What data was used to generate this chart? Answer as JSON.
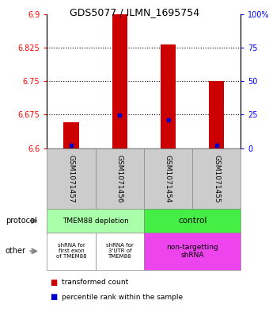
{
  "title": "GDS5077 / ILMN_1695754",
  "samples": [
    "GSM1071457",
    "GSM1071456",
    "GSM1071454",
    "GSM1071455"
  ],
  "red_values": [
    6.658,
    6.9,
    6.832,
    6.75
  ],
  "blue_values": [
    6.607,
    6.674,
    6.663,
    6.607
  ],
  "ylim": [
    6.6,
    6.9
  ],
  "yticks_left": [
    6.6,
    6.675,
    6.75,
    6.825,
    6.9
  ],
  "yticks_right": [
    0,
    25,
    50,
    75,
    100
  ],
  "ytick_labels_right": [
    "0",
    "25",
    "50",
    "75",
    "100%"
  ],
  "dotted_lines": [
    6.675,
    6.75,
    6.825
  ],
  "bar_color": "#cc0000",
  "blue_color": "#0000cc",
  "protocol_label0": "TMEM88 depletion",
  "protocol_label1": "control",
  "protocol_color0": "#aaffaa",
  "protocol_color1": "#44ee44",
  "other_label0": "shRNA for\nfirst exon\nof TMEM88",
  "other_label1": "shRNA for\n3'UTR of\nTMEM88",
  "other_label2": "non-targetting\nshRNA",
  "other_color0": "#ffffff",
  "other_color1": "#ffffff",
  "other_color2": "#ee44ee",
  "legend_red": "transformed count",
  "legend_blue": "percentile rank within the sample",
  "protocol_row_label": "protocol",
  "other_row_label": "other"
}
